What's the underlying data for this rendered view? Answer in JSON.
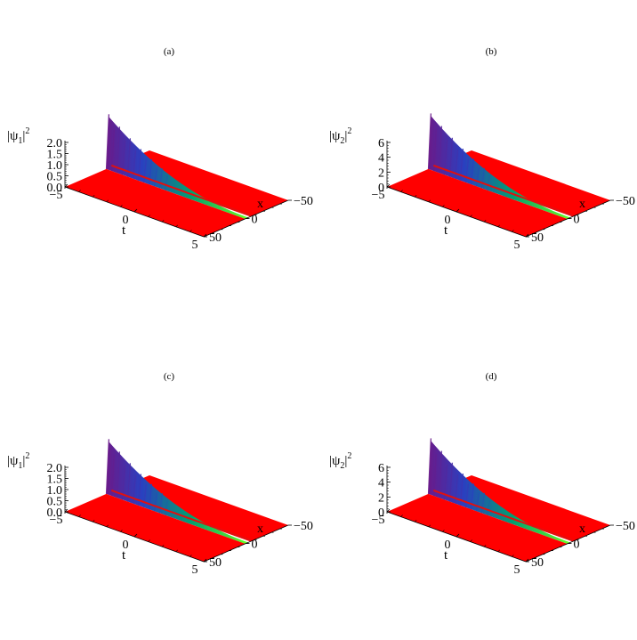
{
  "chart_data": [
    {
      "type": "surface3d",
      "panel_label": "(a)",
      "zlabel": "|ψ",
      "zlabel_sub": "1",
      "zlabel_sup": "2",
      "xlabel": "x",
      "tlabel": "t",
      "t_ticks": [
        "−5",
        "0",
        "5"
      ],
      "x_ticks": [
        "−50",
        "0",
        "50"
      ],
      "z_ticks": [
        "0.0",
        "0.5",
        "1.0",
        "1.5",
        "2.0"
      ],
      "t_range": [
        -5,
        5
      ],
      "x_range": [
        -50,
        50
      ],
      "z_range": [
        0,
        2.0
      ],
      "peak": 2.3,
      "base": 0.02
    },
    {
      "type": "surface3d",
      "panel_label": "(b)",
      "zlabel": "|ψ",
      "zlabel_sub": "2",
      "zlabel_sup": "2",
      "xlabel": "x",
      "tlabel": "t",
      "t_ticks": [
        "−5",
        "0",
        "5"
      ],
      "x_ticks": [
        "−50",
        "0",
        "50"
      ],
      "z_ticks": [
        "0",
        "2",
        "4",
        "6"
      ],
      "t_range": [
        -5,
        5
      ],
      "x_range": [
        -50,
        50
      ],
      "z_range": [
        0,
        6
      ],
      "peak": 7.0,
      "base": 0.06
    },
    {
      "type": "surface3d",
      "panel_label": "(c)",
      "zlabel": "|ψ",
      "zlabel_sub": "1",
      "zlabel_sup": "2",
      "xlabel": "x",
      "tlabel": "t",
      "t_ticks": [
        "−5",
        "0",
        "5"
      ],
      "x_ticks": [
        "−50",
        "0",
        "50"
      ],
      "z_ticks": [
        "0.0",
        "0.5",
        "1.0",
        "1.5",
        "2.0"
      ],
      "t_range": [
        -5,
        5
      ],
      "x_range": [
        -50,
        50
      ],
      "z_range": [
        0,
        2.0
      ],
      "peak": 2.3,
      "base": 0.02
    },
    {
      "type": "surface3d",
      "panel_label": "(d)",
      "zlabel": "|ψ",
      "zlabel_sub": "2",
      "zlabel_sup": "2",
      "xlabel": "x",
      "tlabel": "t",
      "t_ticks": [
        "−5",
        "0",
        "5"
      ],
      "x_ticks": [
        "−50",
        "0",
        "50"
      ],
      "z_ticks": [
        "0",
        "2",
        "4",
        "6"
      ],
      "t_range": [
        -5,
        5
      ],
      "x_range": [
        -50,
        50
      ],
      "z_range": [
        0,
        6
      ],
      "peak": 7.0,
      "base": 0.06
    }
  ],
  "colors": {
    "floor": "#ff0000",
    "ridge_low": "#66ff22",
    "ridge_mid": "#00a070",
    "ridge_high": "#2a40c0",
    "ridge_top": "#6a1a8a",
    "axis": "#000000"
  }
}
